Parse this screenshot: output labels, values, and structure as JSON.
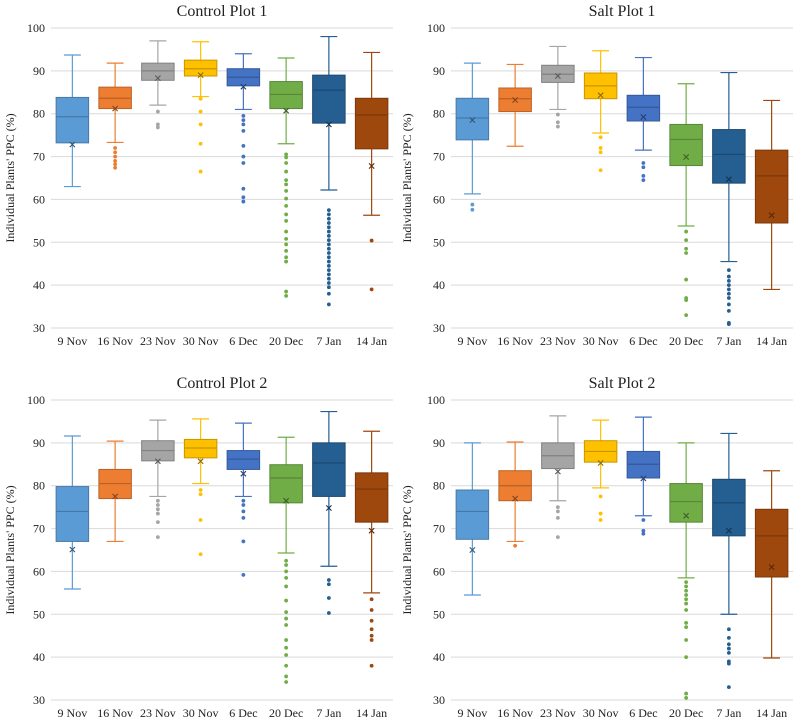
{
  "colors": [
    "#5b9bd5",
    "#ed7d31",
    "#a5a5a5",
    "#ffc000",
    "#4472c4",
    "#70ad47",
    "#255e91",
    "#9e480e"
  ],
  "chart_data": [
    {
      "type": "boxplot",
      "title": "Control Plot 1",
      "ylabel": "Individual Plants' PPC (%)",
      "ylim": [
        30,
        100
      ],
      "yticks": [
        "30",
        "40",
        "50",
        "60",
        "70",
        "80",
        "90",
        "100"
      ],
      "categories": [
        "9 Nov",
        "16 Nov",
        "23 Nov",
        "30 Nov",
        "6 Dec",
        "20 Dec",
        "7 Jan",
        "14 Jan"
      ],
      "boxes": [
        {
          "min": 63,
          "q1": 73.2,
          "median": 79.3,
          "q3": 83.8,
          "max": 93.7,
          "mean": 72.8,
          "outliers": []
        },
        {
          "min": 73.3,
          "q1": 81.2,
          "median": 83.6,
          "q3": 86.2,
          "max": 91.8,
          "mean": 81.2,
          "outliers": [
            72.0,
            71.0,
            70.0,
            69.0,
            68.2,
            67.4
          ]
        },
        {
          "min": 82.0,
          "q1": 87.8,
          "median": 90.0,
          "q3": 91.8,
          "max": 97.0,
          "mean": 88.3,
          "outliers": [
            80.5,
            77.5,
            76.8
          ]
        },
        {
          "min": 84.0,
          "q1": 88.8,
          "median": 90.5,
          "q3": 92.5,
          "max": 96.8,
          "mean": 89.0,
          "outliers": [
            83.5,
            80.5,
            77.5,
            73.0,
            66.5
          ]
        },
        {
          "min": 81.0,
          "q1": 86.5,
          "median": 88.5,
          "q3": 90.5,
          "max": 94.0,
          "mean": 86.3,
          "outliers": [
            79.5,
            78.5,
            77.5,
            76.0,
            72.5,
            70.0,
            68.5,
            62.5,
            60.5,
            59.5
          ]
        },
        {
          "min": 73.0,
          "q1": 81.2,
          "median": 84.5,
          "q3": 87.5,
          "max": 93.0,
          "mean": 80.7,
          "outliers": [
            70.5,
            69.8,
            68.5,
            66.5,
            64.5,
            63.5,
            62.0,
            60.2,
            58.5,
            56.5,
            55.0,
            52.5,
            50.8,
            49.5,
            48.0,
            46.5,
            45.5,
            38.5,
            37.5
          ]
        },
        {
          "min": 62.2,
          "q1": 77.8,
          "median": 85.5,
          "q3": 89.0,
          "max": 98.0,
          "mean": 77.5,
          "outliers": [
            57.5,
            56.5,
            55.5,
            54.5,
            53.5,
            52.5,
            51.5,
            50.5,
            49.5,
            48.5,
            47.5,
            46.5,
            45.5,
            44.5,
            43.5,
            42.5,
            41.5,
            40.5,
            39.5,
            38.0,
            35.5
          ]
        },
        {
          "min": 56.3,
          "q1": 71.8,
          "median": 79.7,
          "q3": 83.6,
          "max": 94.3,
          "mean": 67.8,
          "outliers": [
            50.4,
            39.0
          ]
        }
      ]
    },
    {
      "type": "boxplot",
      "title": "Salt Plot 1",
      "ylabel": "Individual Plants' PPC (%)",
      "ylim": [
        30,
        100
      ],
      "yticks": [
        "30",
        "40",
        "50",
        "60",
        "70",
        "80",
        "90",
        "100"
      ],
      "categories": [
        "9 Nov",
        "16 Nov",
        "23 Nov",
        "30 Nov",
        "6 Dec",
        "20 Dec",
        "7 Jan",
        "14 Jan"
      ],
      "boxes": [
        {
          "min": 61.3,
          "q1": 73.9,
          "median": 79.0,
          "q3": 83.6,
          "max": 91.8,
          "mean": 78.5,
          "outliers": [
            58.8,
            57.6
          ]
        },
        {
          "min": 72.4,
          "q1": 80.5,
          "median": 83.5,
          "q3": 86.0,
          "max": 91.5,
          "mean": 83.2,
          "outliers": []
        },
        {
          "min": 81.0,
          "q1": 87.3,
          "median": 89.2,
          "q3": 91.3,
          "max": 95.7,
          "mean": 88.8,
          "outliers": [
            79.8,
            78.0,
            77.0
          ]
        },
        {
          "min": 75.5,
          "q1": 83.5,
          "median": 86.5,
          "q3": 89.5,
          "max": 94.7,
          "mean": 84.3,
          "outliers": [
            74.5,
            72.0,
            71.0,
            66.8
          ]
        },
        {
          "min": 71.5,
          "q1": 78.3,
          "median": 81.5,
          "q3": 84.3,
          "max": 93.1,
          "mean": 79.2,
          "outliers": [
            68.5,
            67.5,
            65.5,
            64.5
          ]
        },
        {
          "min": 53.8,
          "q1": 67.9,
          "median": 74.0,
          "q3": 77.5,
          "max": 87.0,
          "mean": 69.9,
          "outliers": [
            52.5,
            50.5,
            48.5,
            47.5,
            41.3,
            37.0,
            36.5,
            33.0
          ]
        },
        {
          "min": 45.5,
          "q1": 63.8,
          "median": 70.5,
          "q3": 76.3,
          "max": 89.6,
          "mean": 64.7,
          "outliers": [
            43.5,
            42.0,
            41.0,
            40.0,
            39.0,
            38.0,
            37.0,
            35.5,
            34.0,
            31.2,
            30.9
          ]
        },
        {
          "min": 39.0,
          "q1": 54.5,
          "median": 65.5,
          "q3": 71.5,
          "max": 83.1,
          "mean": 56.3,
          "outliers": []
        }
      ]
    },
    {
      "type": "boxplot",
      "title": "Control Plot 2",
      "ylabel": "Individual Plants' PPC (%)",
      "ylim": [
        30,
        100
      ],
      "yticks": [
        "30",
        "40",
        "50",
        "60",
        "70",
        "80",
        "90",
        "100"
      ],
      "categories": [
        "9 Nov",
        "16 Nov",
        "23 Nov",
        "30 Nov",
        "6 Dec",
        "20 Dec",
        "7 Jan",
        "14 Jan"
      ],
      "boxes": [
        {
          "min": 55.9,
          "q1": 67.0,
          "median": 74.0,
          "q3": 79.8,
          "max": 91.6,
          "mean": 65.1,
          "outliers": []
        },
        {
          "min": 67.0,
          "q1": 77.0,
          "median": 80.5,
          "q3": 83.8,
          "max": 90.4,
          "mean": 77.5,
          "outliers": []
        },
        {
          "min": 77.5,
          "q1": 85.8,
          "median": 88.2,
          "q3": 90.5,
          "max": 95.3,
          "mean": 85.7,
          "outliers": [
            76.5,
            75.5,
            74.5,
            73.5,
            71.5,
            68.0
          ]
        },
        {
          "min": 80.5,
          "q1": 86.5,
          "median": 88.8,
          "q3": 90.8,
          "max": 95.6,
          "mean": 85.7,
          "outliers": [
            79.0,
            78.0,
            72.0,
            64.0
          ]
        },
        {
          "min": 77.5,
          "q1": 83.8,
          "median": 86.2,
          "q3": 88.2,
          "max": 94.6,
          "mean": 82.8,
          "outliers": [
            76.5,
            75.5,
            74.0,
            72.5,
            67.0,
            59.2
          ]
        },
        {
          "min": 64.3,
          "q1": 76.0,
          "median": 81.8,
          "q3": 84.9,
          "max": 91.3,
          "mean": 76.5,
          "outliers": [
            62.5,
            61.5,
            60.0,
            58.5,
            56.5,
            53.2,
            50.5,
            49.0,
            47.5,
            44.0,
            42.2,
            40.5,
            38.0,
            35.5,
            34.2
          ]
        },
        {
          "min": 61.2,
          "q1": 77.5,
          "median": 85.3,
          "q3": 90.0,
          "max": 97.3,
          "mean": 74.8,
          "outliers": [
            58.0,
            57.0,
            53.8,
            50.3
          ]
        },
        {
          "min": 55.0,
          "q1": 71.5,
          "median": 79.2,
          "q3": 83.0,
          "max": 92.7,
          "mean": 69.5,
          "outliers": [
            53.5,
            51.0,
            48.5,
            46.5,
            45.0,
            44.0,
            38.0
          ]
        }
      ]
    },
    {
      "type": "boxplot",
      "title": "Salt Plot 2",
      "ylabel": "Individual Plants' PPC (%)",
      "ylim": [
        30,
        100
      ],
      "yticks": [
        "30",
        "40",
        "50",
        "60",
        "70",
        "80",
        "90",
        "100"
      ],
      "categories": [
        "9 Nov",
        "16 Nov",
        "23 Nov",
        "30 Nov",
        "6 Dec",
        "20 Dec",
        "7 Jan",
        "14 Jan"
      ],
      "boxes": [
        {
          "min": 54.5,
          "q1": 67.5,
          "median": 74.0,
          "q3": 79.0,
          "max": 90.0,
          "mean": 65.0,
          "outliers": []
        },
        {
          "min": 67.0,
          "q1": 76.5,
          "median": 80.0,
          "q3": 83.5,
          "max": 90.2,
          "mean": 77.0,
          "outliers": [
            66.0
          ]
        },
        {
          "min": 76.5,
          "q1": 84.0,
          "median": 87.0,
          "q3": 90.0,
          "max": 96.3,
          "mean": 83.3,
          "outliers": [
            75.0,
            74.0,
            72.5,
            68.0
          ]
        },
        {
          "min": 79.5,
          "q1": 85.5,
          "median": 88.0,
          "q3": 90.5,
          "max": 95.3,
          "mean": 85.3,
          "outliers": [
            77.5,
            73.5,
            72.0
          ]
        },
        {
          "min": 73.0,
          "q1": 81.8,
          "median": 85.0,
          "q3": 88.0,
          "max": 96.0,
          "mean": 81.7,
          "outliers": [
            72.0,
            69.5,
            68.8
          ]
        },
        {
          "min": 58.5,
          "q1": 71.5,
          "median": 76.3,
          "q3": 80.5,
          "max": 90.0,
          "mean": 73.0,
          "outliers": [
            57.5,
            56.5,
            55.5,
            54.5,
            53.5,
            52.5,
            51.0,
            48.0,
            47.0,
            44.0,
            40.0,
            31.5,
            30.5
          ]
        },
        {
          "min": 50.0,
          "q1": 68.3,
          "median": 76.0,
          "q3": 81.5,
          "max": 92.2,
          "mean": 69.5,
          "outliers": [
            46.5,
            44.5,
            43.0,
            42.0,
            41.0,
            39.0,
            38.5,
            33.0
          ]
        },
        {
          "min": 39.8,
          "q1": 58.7,
          "median": 68.3,
          "q3": 74.5,
          "max": 83.5,
          "mean": 61.0,
          "outliers": []
        }
      ]
    }
  ]
}
